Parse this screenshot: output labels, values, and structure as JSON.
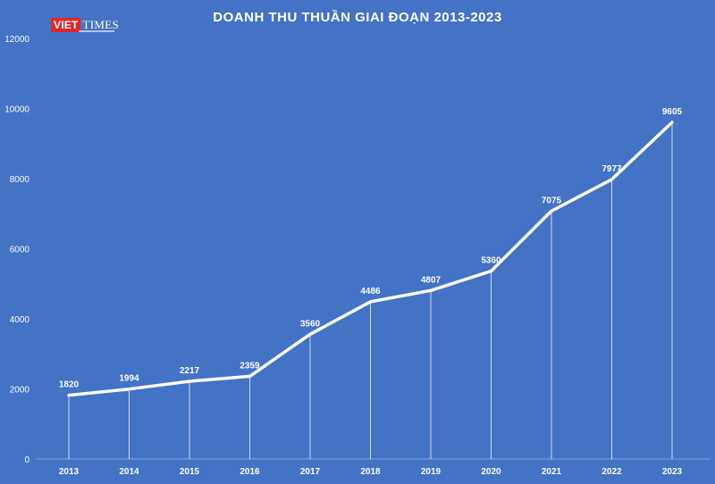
{
  "logo": {
    "part1": "VIET",
    "part2": "TIMES"
  },
  "chart_data": {
    "type": "line",
    "title": "DOANH THU THUẦN GIAI ĐOẠN 2013-2023",
    "xlabel": "",
    "ylabel": "",
    "categories": [
      "2013",
      "2014",
      "2015",
      "2016",
      "2017",
      "2018",
      "2019",
      "2020",
      "2021",
      "2022",
      "2023"
    ],
    "values": [
      1820,
      1994,
      2217,
      2359,
      3560,
      4486,
      4807,
      5360,
      7075,
      7977,
      9605
    ],
    "data_labels": [
      "1820",
      "1994",
      "2217",
      "2359",
      "3560",
      "4486",
      "4807",
      "5360",
      "7075",
      "7977",
      "9605"
    ],
    "yticks": [
      "0",
      "2000",
      "4000",
      "6000",
      "8000",
      "10000",
      "12000"
    ],
    "ylim": [
      0,
      12000
    ],
    "grid": false,
    "drop_lines": true,
    "legend": "none",
    "colors": {
      "background": "#4472c4",
      "line": "#ffffff",
      "text": "#ffffff",
      "logo_red": "#e3262b"
    }
  }
}
